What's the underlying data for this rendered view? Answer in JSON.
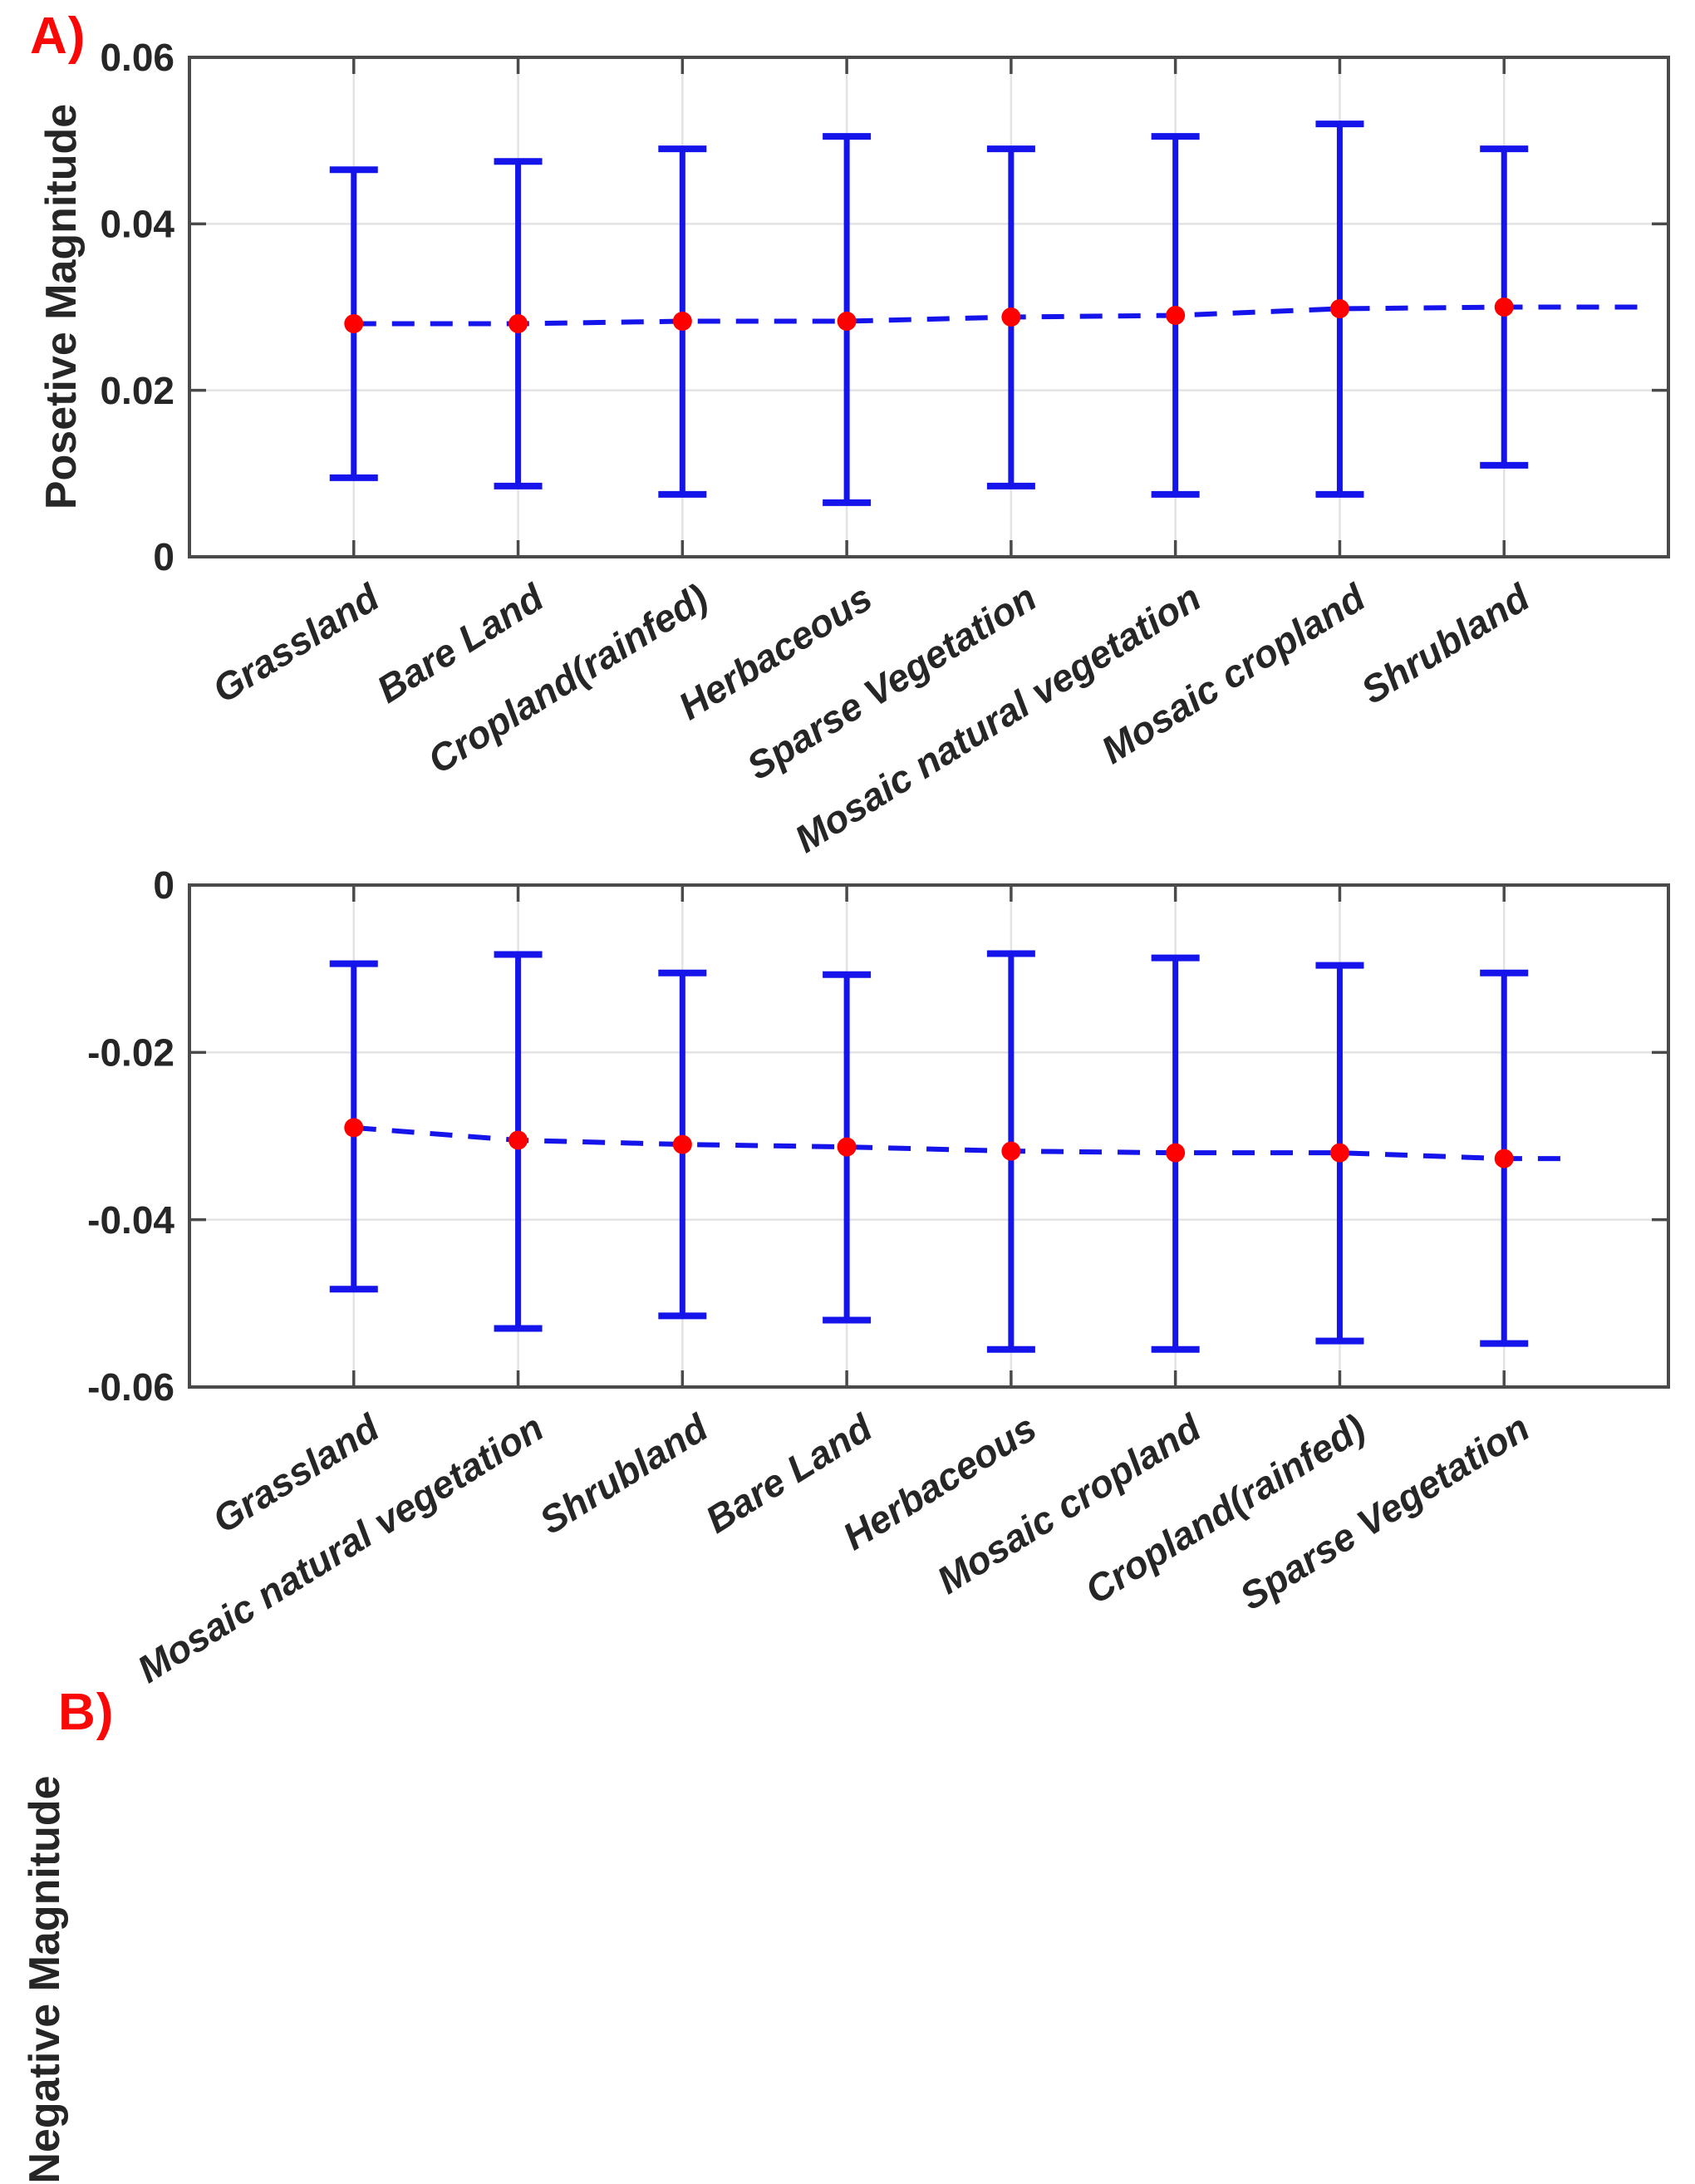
{
  "figure": {
    "background": "#ffffff"
  },
  "chart_data": [
    {
      "type": "line",
      "subtype": "errorbar",
      "panel_label": "A)",
      "title": "",
      "xlabel": "",
      "ylabel": "Posetive Magnitude",
      "categories": [
        "Grassland",
        "Bare Land",
        "Cropland(rainfed)",
        "Herbaceous",
        "Sparse Vegetation",
        "Mosaic natural vegetation",
        "Mosaic cropland",
        "Shrubland"
      ],
      "series": [
        {
          "name": "mean",
          "values": [
            0.028,
            0.028,
            0.0283,
            0.0283,
            0.0288,
            0.029,
            0.0298,
            0.03
          ]
        },
        {
          "name": "upper_bound",
          "values": [
            0.0465,
            0.0475,
            0.049,
            0.0505,
            0.049,
            0.0505,
            0.052,
            0.049
          ]
        },
        {
          "name": "lower_bound",
          "values": [
            0.0095,
            0.0085,
            0.0075,
            0.0065,
            0.0085,
            0.0075,
            0.0075,
            0.011
          ]
        }
      ],
      "ylim": [
        0,
        0.06
      ],
      "yticks": [
        0,
        0.02,
        0.04,
        0.06
      ],
      "ytick_labels": [
        "0",
        "0.02",
        "0.04",
        "0.06"
      ],
      "grid": true,
      "legend": null,
      "line_style": "dashed",
      "marker": "circle",
      "colors": {
        "line": "#1414eb",
        "errorbar": "#1414eb",
        "marker": "#ff0000",
        "panel_label": "#fa0808",
        "axis": "#4a4a4a",
        "grid": "#e3e3e3",
        "text": "#262626"
      }
    },
    {
      "type": "line",
      "subtype": "errorbar",
      "panel_label": "B)",
      "title": "",
      "xlabel": "",
      "ylabel": "Negative Magnitude",
      "categories": [
        "Grassland",
        "Mosaic natural vegetation",
        "Shrubland",
        "Bare Land",
        "Herbaceous",
        "Mosaic cropland",
        "Cropland(rainfed)",
        "Sparse Vegetation"
      ],
      "series": [
        {
          "name": "mean",
          "values": [
            -0.029,
            -0.0305,
            -0.031,
            -0.0313,
            -0.0318,
            -0.032,
            -0.032,
            -0.0327
          ]
        },
        {
          "name": "upper_bound",
          "values": [
            -0.0094,
            -0.0083,
            -0.0105,
            -0.0107,
            -0.0082,
            -0.0087,
            -0.0096,
            -0.0105
          ]
        },
        {
          "name": "lower_bound",
          "values": [
            -0.0483,
            -0.053,
            -0.0515,
            -0.052,
            -0.0555,
            -0.0555,
            -0.0545,
            -0.0548
          ]
        }
      ],
      "ylim": [
        -0.06,
        0
      ],
      "yticks": [
        -0.06,
        -0.04,
        -0.02,
        0
      ],
      "ytick_labels": [
        "-0.06",
        "-0.04",
        "-0.02",
        "0"
      ],
      "grid": true,
      "legend": null,
      "line_style": "dashed",
      "marker": "circle",
      "colors": {
        "line": "#1414eb",
        "errorbar": "#1414eb",
        "marker": "#ff0000",
        "panel_label": "#fa0808",
        "axis": "#4a4a4a",
        "grid": "#e3e3e3",
        "text": "#262626"
      }
    }
  ]
}
